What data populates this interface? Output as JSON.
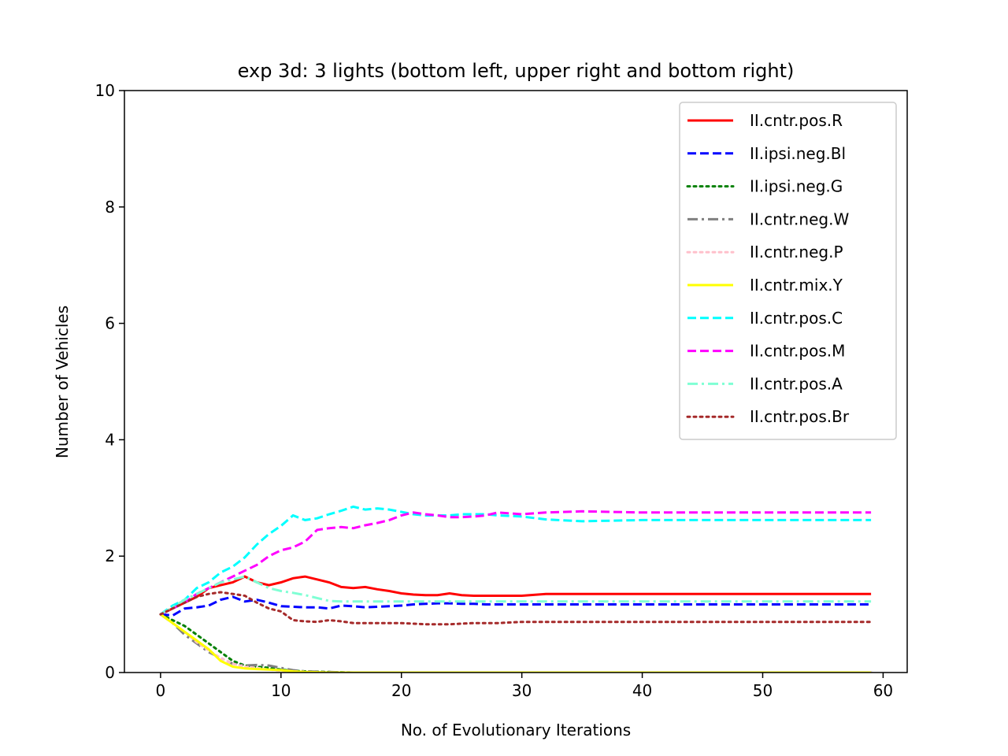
{
  "chart_data": {
    "type": "line",
    "title": "exp 3d: 3 lights (bottom left, upper right and bottom right)",
    "xlabel": "No. of Evolutionary Iterations",
    "ylabel": "Number of Vehicles",
    "xlim": [
      -3,
      62
    ],
    "ylim": [
      0,
      10
    ],
    "xticks": [
      0,
      10,
      20,
      30,
      40,
      50,
      60
    ],
    "yticks": [
      0,
      2,
      4,
      6,
      8,
      10
    ],
    "grid": false,
    "legend_position": "top-right",
    "series": [
      {
        "name": "II.cntr.pos.R",
        "color": "#ff0000",
        "dash": "solid",
        "points": [
          [
            0,
            1.0
          ],
          [
            1,
            1.1
          ],
          [
            2,
            1.2
          ],
          [
            3,
            1.3
          ],
          [
            4,
            1.45
          ],
          [
            5,
            1.5
          ],
          [
            6,
            1.55
          ],
          [
            7,
            1.65
          ],
          [
            8,
            1.55
          ],
          [
            9,
            1.5
          ],
          [
            10,
            1.55
          ],
          [
            11,
            1.62
          ],
          [
            12,
            1.65
          ],
          [
            13,
            1.6
          ],
          [
            14,
            1.55
          ],
          [
            15,
            1.47
          ],
          [
            16,
            1.45
          ],
          [
            17,
            1.47
          ],
          [
            18,
            1.43
          ],
          [
            19,
            1.4
          ],
          [
            20,
            1.36
          ],
          [
            21,
            1.34
          ],
          [
            22,
            1.33
          ],
          [
            23,
            1.33
          ],
          [
            24,
            1.36
          ],
          [
            25,
            1.33
          ],
          [
            26,
            1.32
          ],
          [
            28,
            1.32
          ],
          [
            30,
            1.32
          ],
          [
            32,
            1.35
          ],
          [
            35,
            1.35
          ],
          [
            40,
            1.35
          ],
          [
            45,
            1.35
          ],
          [
            50,
            1.35
          ],
          [
            55,
            1.35
          ],
          [
            59,
            1.35
          ]
        ]
      },
      {
        "name": "II.ipsi.neg.Bl",
        "color": "#0000ff",
        "dash": "dashed",
        "points": [
          [
            0,
            1.0
          ],
          [
            1,
            0.98
          ],
          [
            2,
            1.1
          ],
          [
            3,
            1.12
          ],
          [
            4,
            1.15
          ],
          [
            5,
            1.25
          ],
          [
            6,
            1.3
          ],
          [
            7,
            1.22
          ],
          [
            8,
            1.25
          ],
          [
            9,
            1.2
          ],
          [
            10,
            1.14
          ],
          [
            11,
            1.13
          ],
          [
            12,
            1.12
          ],
          [
            13,
            1.12
          ],
          [
            14,
            1.1
          ],
          [
            15,
            1.15
          ],
          [
            16,
            1.14
          ],
          [
            17,
            1.12
          ],
          [
            18,
            1.13
          ],
          [
            19,
            1.14
          ],
          [
            20,
            1.15
          ],
          [
            21,
            1.17
          ],
          [
            22,
            1.18
          ],
          [
            23,
            1.19
          ],
          [
            24,
            1.19
          ],
          [
            25,
            1.18
          ],
          [
            26,
            1.18
          ],
          [
            27,
            1.17
          ],
          [
            30,
            1.17
          ],
          [
            35,
            1.17
          ],
          [
            40,
            1.17
          ],
          [
            45,
            1.17
          ],
          [
            50,
            1.17
          ],
          [
            55,
            1.17
          ],
          [
            59,
            1.17
          ]
        ]
      },
      {
        "name": "II.ipsi.neg.G",
        "color": "#008000",
        "dash": "dotted",
        "points": [
          [
            0,
            1.0
          ],
          [
            1,
            0.9
          ],
          [
            2,
            0.8
          ],
          [
            3,
            0.65
          ],
          [
            4,
            0.5
          ],
          [
            5,
            0.35
          ],
          [
            6,
            0.2
          ],
          [
            7,
            0.12
          ],
          [
            8,
            0.1
          ],
          [
            9,
            0.08
          ],
          [
            10,
            0.05
          ],
          [
            11,
            0.03
          ],
          [
            12,
            0.02
          ],
          [
            14,
            0.01
          ],
          [
            16,
            0.0
          ],
          [
            20,
            0.0
          ],
          [
            30,
            0.0
          ],
          [
            40,
            0.0
          ],
          [
            50,
            0.0
          ],
          [
            59,
            0.0
          ]
        ]
      },
      {
        "name": "II.cntr.neg.W",
        "color": "#808080",
        "dash": "dashdot",
        "points": [
          [
            0,
            1.0
          ],
          [
            1,
            0.85
          ],
          [
            2,
            0.65
          ],
          [
            3,
            0.5
          ],
          [
            4,
            0.35
          ],
          [
            5,
            0.25
          ],
          [
            6,
            0.15
          ],
          [
            7,
            0.12
          ],
          [
            8,
            0.13
          ],
          [
            9,
            0.12
          ],
          [
            10,
            0.08
          ],
          [
            11,
            0.04
          ],
          [
            12,
            0.02
          ],
          [
            14,
            0.01
          ],
          [
            16,
            0.0
          ],
          [
            20,
            0.0
          ],
          [
            30,
            0.0
          ],
          [
            40,
            0.0
          ],
          [
            50,
            0.0
          ],
          [
            59,
            0.0
          ]
        ]
      },
      {
        "name": "II.cntr.neg.P",
        "color": "#ffc0cb",
        "dash": "dotted",
        "points": [
          [
            0,
            1.0
          ],
          [
            1,
            0.85
          ],
          [
            2,
            0.7
          ],
          [
            3,
            0.52
          ],
          [
            4,
            0.38
          ],
          [
            5,
            0.25
          ],
          [
            6,
            0.15
          ],
          [
            7,
            0.1
          ],
          [
            8,
            0.08
          ],
          [
            9,
            0.05
          ],
          [
            10,
            0.03
          ],
          [
            12,
            0.01
          ],
          [
            14,
            0.0
          ],
          [
            20,
            0.0
          ],
          [
            30,
            0.0
          ],
          [
            40,
            0.0
          ],
          [
            50,
            0.0
          ],
          [
            59,
            0.0
          ]
        ]
      },
      {
        "name": "II.cntr.mix.Y",
        "color": "#ffff00",
        "dash": "solid",
        "points": [
          [
            0,
            1.0
          ],
          [
            1,
            0.85
          ],
          [
            2,
            0.7
          ],
          [
            3,
            0.55
          ],
          [
            4,
            0.4
          ],
          [
            5,
            0.2
          ],
          [
            6,
            0.1
          ],
          [
            7,
            0.07
          ],
          [
            8,
            0.06
          ],
          [
            9,
            0.05
          ],
          [
            10,
            0.04
          ],
          [
            11,
            0.02
          ],
          [
            12,
            0.01
          ],
          [
            14,
            0.0
          ],
          [
            20,
            0.0
          ],
          [
            30,
            0.0
          ],
          [
            40,
            0.0
          ],
          [
            50,
            0.0
          ],
          [
            59,
            0.0
          ]
        ]
      },
      {
        "name": "II.cntr.pos.C",
        "color": "#00ffff",
        "dash": "dashed",
        "points": [
          [
            0,
            1.0
          ],
          [
            1,
            1.15
          ],
          [
            2,
            1.25
          ],
          [
            3,
            1.45
          ],
          [
            4,
            1.55
          ],
          [
            5,
            1.72
          ],
          [
            6,
            1.82
          ],
          [
            7,
            1.98
          ],
          [
            8,
            2.2
          ],
          [
            9,
            2.38
          ],
          [
            10,
            2.52
          ],
          [
            11,
            2.7
          ],
          [
            12,
            2.62
          ],
          [
            13,
            2.65
          ],
          [
            14,
            2.72
          ],
          [
            15,
            2.78
          ],
          [
            16,
            2.85
          ],
          [
            17,
            2.8
          ],
          [
            18,
            2.82
          ],
          [
            19,
            2.8
          ],
          [
            20,
            2.76
          ],
          [
            21,
            2.72
          ],
          [
            22,
            2.7
          ],
          [
            23,
            2.7
          ],
          [
            24,
            2.7
          ],
          [
            25,
            2.72
          ],
          [
            26,
            2.72
          ],
          [
            27,
            2.72
          ],
          [
            28,
            2.7
          ],
          [
            30,
            2.68
          ],
          [
            32,
            2.63
          ],
          [
            35,
            2.6
          ],
          [
            40,
            2.62
          ],
          [
            45,
            2.62
          ],
          [
            50,
            2.62
          ],
          [
            55,
            2.62
          ],
          [
            59,
            2.62
          ]
        ]
      },
      {
        "name": "II.cntr.pos.M",
        "color": "#ff00ff",
        "dash": "dashed",
        "points": [
          [
            0,
            1.0
          ],
          [
            1,
            1.1
          ],
          [
            2,
            1.2
          ],
          [
            3,
            1.35
          ],
          [
            4,
            1.45
          ],
          [
            5,
            1.55
          ],
          [
            6,
            1.65
          ],
          [
            7,
            1.75
          ],
          [
            8,
            1.85
          ],
          [
            9,
            2.0
          ],
          [
            10,
            2.1
          ],
          [
            11,
            2.15
          ],
          [
            12,
            2.25
          ],
          [
            13,
            2.45
          ],
          [
            14,
            2.48
          ],
          [
            15,
            2.5
          ],
          [
            16,
            2.48
          ],
          [
            17,
            2.53
          ],
          [
            18,
            2.57
          ],
          [
            19,
            2.62
          ],
          [
            20,
            2.7
          ],
          [
            21,
            2.75
          ],
          [
            22,
            2.72
          ],
          [
            23,
            2.7
          ],
          [
            24,
            2.67
          ],
          [
            25,
            2.67
          ],
          [
            26,
            2.68
          ],
          [
            27,
            2.7
          ],
          [
            28,
            2.75
          ],
          [
            30,
            2.72
          ],
          [
            32,
            2.75
          ],
          [
            35,
            2.77
          ],
          [
            40,
            2.75
          ],
          [
            45,
            2.75
          ],
          [
            50,
            2.75
          ],
          [
            55,
            2.75
          ],
          [
            59,
            2.75
          ]
        ]
      },
      {
        "name": "II.cntr.pos.A",
        "color": "#7fffd4",
        "dash": "dashdot",
        "points": [
          [
            0,
            1.0
          ],
          [
            1,
            1.12
          ],
          [
            2,
            1.25
          ],
          [
            3,
            1.35
          ],
          [
            4,
            1.45
          ],
          [
            5,
            1.55
          ],
          [
            6,
            1.6
          ],
          [
            7,
            1.65
          ],
          [
            8,
            1.55
          ],
          [
            9,
            1.45
          ],
          [
            10,
            1.4
          ],
          [
            11,
            1.37
          ],
          [
            12,
            1.33
          ],
          [
            13,
            1.28
          ],
          [
            14,
            1.23
          ],
          [
            15,
            1.22
          ],
          [
            17,
            1.22
          ],
          [
            20,
            1.22
          ],
          [
            25,
            1.22
          ],
          [
            30,
            1.22
          ],
          [
            35,
            1.22
          ],
          [
            40,
            1.22
          ],
          [
            45,
            1.22
          ],
          [
            50,
            1.22
          ],
          [
            55,
            1.22
          ],
          [
            59,
            1.22
          ]
        ]
      },
      {
        "name": "II.cntr.pos.Br",
        "color": "#a52a2a",
        "dash": "dotted",
        "points": [
          [
            0,
            1.0
          ],
          [
            1,
            1.1
          ],
          [
            2,
            1.2
          ],
          [
            3,
            1.3
          ],
          [
            4,
            1.35
          ],
          [
            5,
            1.38
          ],
          [
            6,
            1.35
          ],
          [
            7,
            1.32
          ],
          [
            8,
            1.2
          ],
          [
            9,
            1.1
          ],
          [
            10,
            1.05
          ],
          [
            11,
            0.9
          ],
          [
            12,
            0.88
          ],
          [
            13,
            0.87
          ],
          [
            14,
            0.9
          ],
          [
            15,
            0.88
          ],
          [
            16,
            0.85
          ],
          [
            18,
            0.85
          ],
          [
            20,
            0.85
          ],
          [
            22,
            0.83
          ],
          [
            24,
            0.83
          ],
          [
            26,
            0.85
          ],
          [
            28,
            0.85
          ],
          [
            30,
            0.87
          ],
          [
            35,
            0.87
          ],
          [
            40,
            0.87
          ],
          [
            45,
            0.87
          ],
          [
            50,
            0.87
          ],
          [
            55,
            0.87
          ],
          [
            59,
            0.87
          ]
        ]
      }
    ]
  }
}
